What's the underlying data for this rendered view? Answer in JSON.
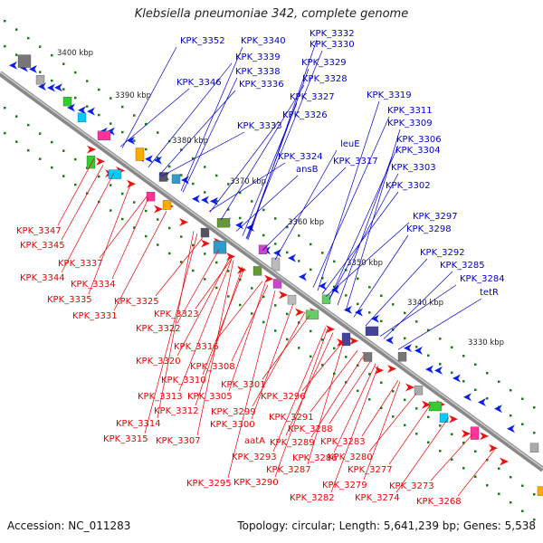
{
  "title": "Klebsiella pneumoniae 342, complete genome",
  "footer": {
    "accession": "Accession: NC_011283",
    "summary": "Topology: circular; Length: 5,641,239 bp; Genes: 5,538"
  },
  "colors": {
    "top_strand_label": "#0000cc",
    "bottom_strand_label": "#ee0000",
    "top_strand_feature": "#0a1ee6",
    "bottom_strand_feature": "#ee1111",
    "backbone": "#777777",
    "tick_marks": "#1a7a1a"
  },
  "ticks": [
    "3400 kbp",
    "3390 kbp",
    "3380 kbp",
    "3370 kbp",
    "3360 kbp",
    "3350 kbp",
    "3340 kbp",
    "3330 kbp"
  ],
  "top_labels": [
    "KPK_3352",
    "KPK_3340",
    "KPK_3332",
    "KPK_3330",
    "KPK_3339",
    "KPK_3338",
    "KPK_3329",
    "KPK_3346",
    "KPK_3336",
    "KPK_3328",
    "KPK_3327",
    "KPK_3319",
    "KPK_3326",
    "KPK_3311",
    "KPK_3333",
    "KPK_3309",
    "leuE",
    "KPK_3306",
    "KPK_3324",
    "KPK_3317",
    "KPK_3304",
    "ansB",
    "KPK_3303",
    "KPK_3302",
    "KPK_3297",
    "KPK_3298",
    "KPK_3292",
    "KPK_3285",
    "KPK_3284",
    "tetR"
  ],
  "bottom_labels": [
    "KPK_3347",
    "KPK_3345",
    "KPK_3337",
    "KPK_3344",
    "KPK_3334",
    "KPK_3335",
    "KPK_3325",
    "KPK_3331",
    "KPK_3323",
    "KPK_3322",
    "KPK_3316",
    "KPK_3320",
    "KPK_3308",
    "KPK_3310",
    "KPK_3301",
    "KPK_3313",
    "KPK_3305",
    "KPK_3296",
    "KPK_3312",
    "KPK_3299",
    "KPK_3314",
    "KPK_3300",
    "KPK_3291",
    "KPK_3315",
    "KPK_3307",
    "KPK_3288",
    "aatA",
    "KPK_3289",
    "KPK_3283",
    "KPK_3286",
    "KPK_3280",
    "KPK_3293",
    "KPK_3287",
    "KPK_3277",
    "KPK_3295",
    "KPK_3290",
    "KPK_3279",
    "KPK_3273",
    "KPK_3282",
    "KPK_3274",
    "KPK_3268"
  ]
}
